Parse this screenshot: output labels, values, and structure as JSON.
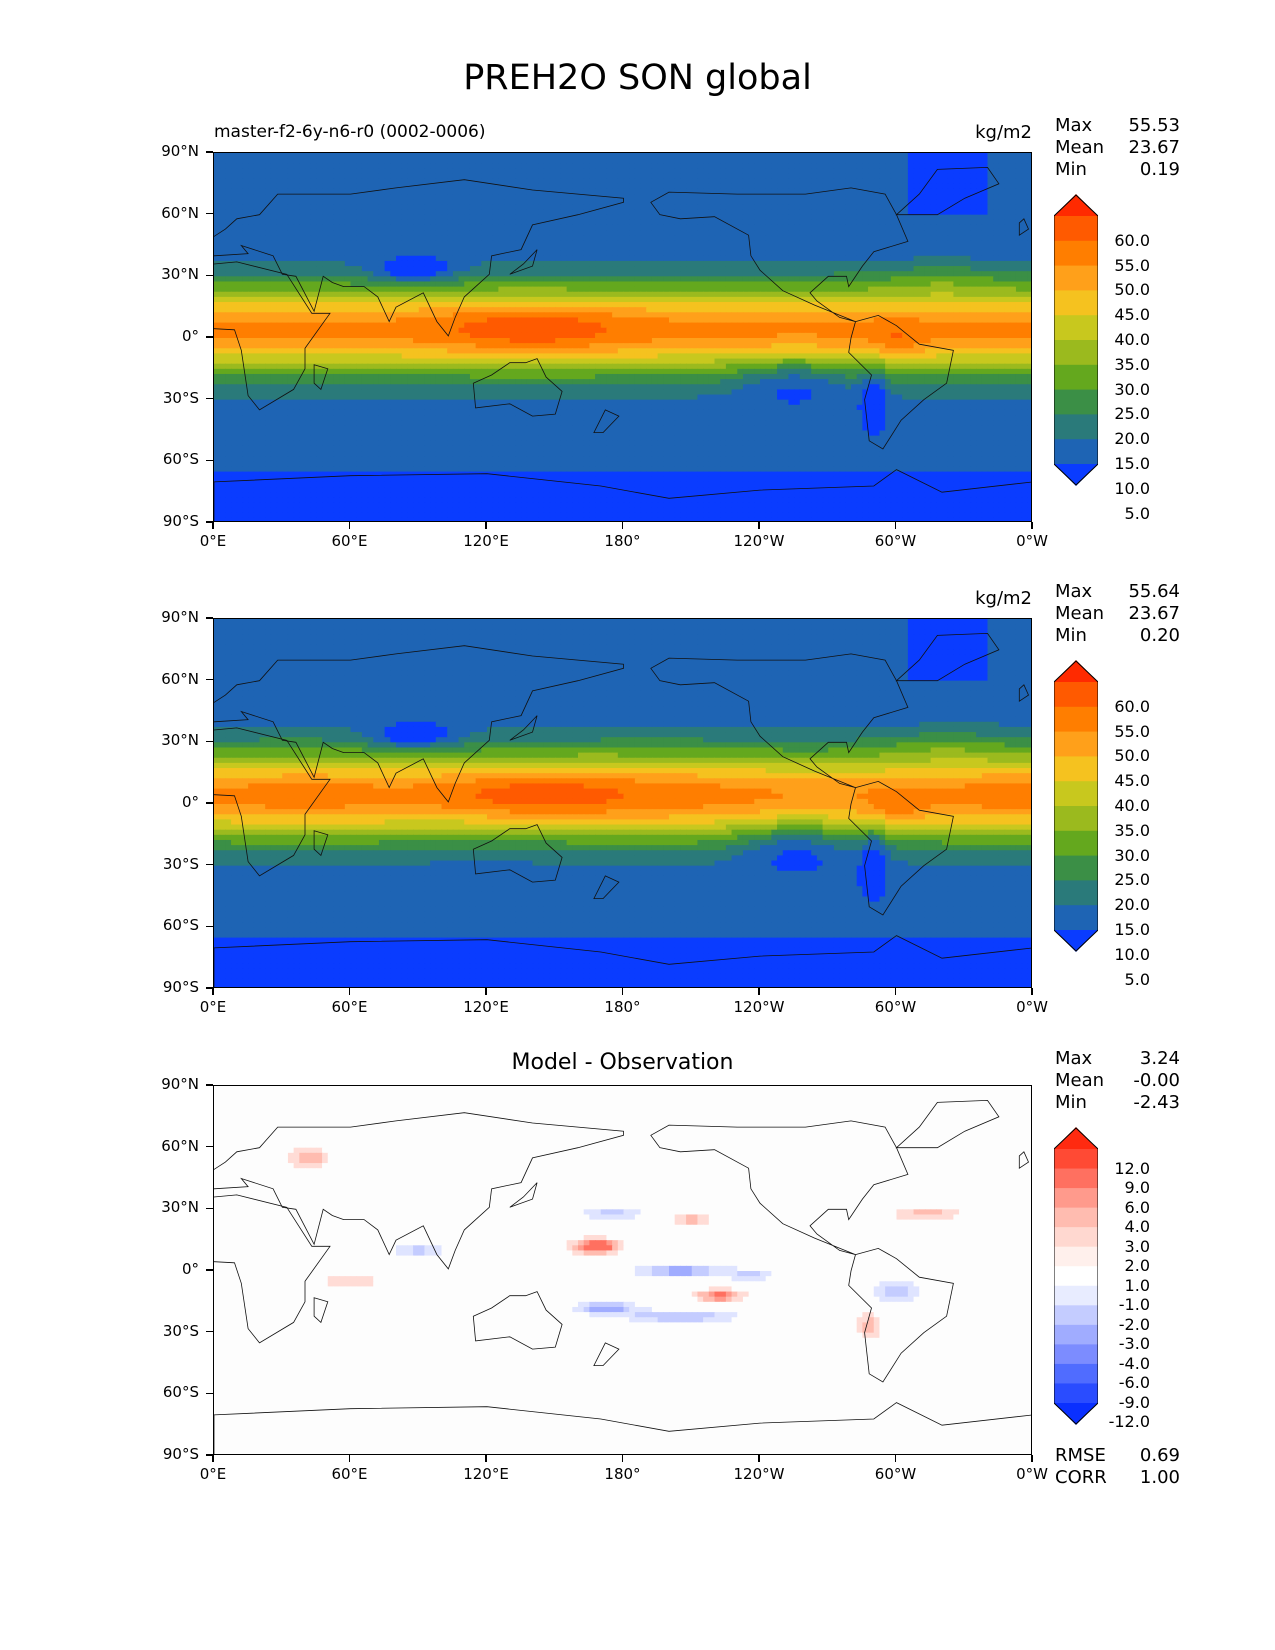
{
  "title": "PREH2O SON global",
  "panels": [
    {
      "subtitle": "master-f2-6y-n6-r0 (0002-0006)",
      "units": "kg/m2",
      "stats": {
        "max_label": "Max",
        "max": "55.53",
        "mean_label": "Mean",
        "mean": "23.67",
        "min_label": "Min",
        "min": "0.19"
      },
      "colorbar": {
        "labels": [
          "60.0",
          "55.0",
          "50.0",
          "45.0",
          "40.0",
          "35.0",
          "30.0",
          "25.0",
          "20.0",
          "15.0",
          "10.0",
          "5.0"
        ],
        "colors": [
          "#ff2a00",
          "#ff5a00",
          "#ff7e00",
          "#ffa01a",
          "#f5c21f",
          "#c8c81e",
          "#9bba1e",
          "#64a81e",
          "#3b8f46",
          "#2a7a7a",
          "#1e64b4",
          "#0a3cff"
        ]
      }
    },
    {
      "subtitle": "",
      "units": "kg/m2",
      "stats": {
        "max_label": "Max",
        "max": "55.64",
        "mean_label": "Mean",
        "mean": "23.67",
        "min_label": "Min",
        "min": "0.20"
      },
      "colorbar": {
        "labels": [
          "60.0",
          "55.0",
          "50.0",
          "45.0",
          "40.0",
          "35.0",
          "30.0",
          "25.0",
          "20.0",
          "15.0",
          "10.0",
          "5.0"
        ],
        "colors": [
          "#ff2a00",
          "#ff5a00",
          "#ff7e00",
          "#ffa01a",
          "#f5c21f",
          "#c8c81e",
          "#9bba1e",
          "#64a81e",
          "#3b8f46",
          "#2a7a7a",
          "#1e64b4",
          "#0a3cff"
        ]
      }
    },
    {
      "subtitle": "Model - Observation",
      "units": "",
      "stats": {
        "max_label": "Max",
        "max": "3.24",
        "mean_label": "Mean",
        "mean": "-0.00",
        "min_label": "Min",
        "min": "-2.43"
      },
      "colorbar": {
        "labels": [
          "12.0",
          "9.0",
          "6.0",
          "4.0",
          "3.0",
          "2.0",
          "1.0",
          "-1.0",
          "-2.0",
          "-3.0",
          "-4.0",
          "-6.0",
          "-9.0",
          "-12.0"
        ],
        "colors": [
          "#ff2a10",
          "#ff4a34",
          "#ff7060",
          "#ff9a8c",
          "#ffbcb0",
          "#ffd8d0",
          "#fff0ec",
          "#ffffff",
          "#e8ecff",
          "#c4ccff",
          "#a0acff",
          "#7c8cff",
          "#506cff",
          "#2a4cff",
          "#0a30ff"
        ]
      },
      "metrics": {
        "rmse_label": "RMSE",
        "rmse": "0.69",
        "corr_label": "CORR",
        "corr": "1.00"
      }
    }
  ],
  "axes": {
    "lat_labels": [
      "90°N",
      "60°N",
      "30°N",
      "0°",
      "30°S",
      "60°S",
      "90°S"
    ],
    "lon_labels": [
      "0°E",
      "60°E",
      "120°E",
      "180°",
      "120°W",
      "60°W",
      "0°W"
    ]
  }
}
